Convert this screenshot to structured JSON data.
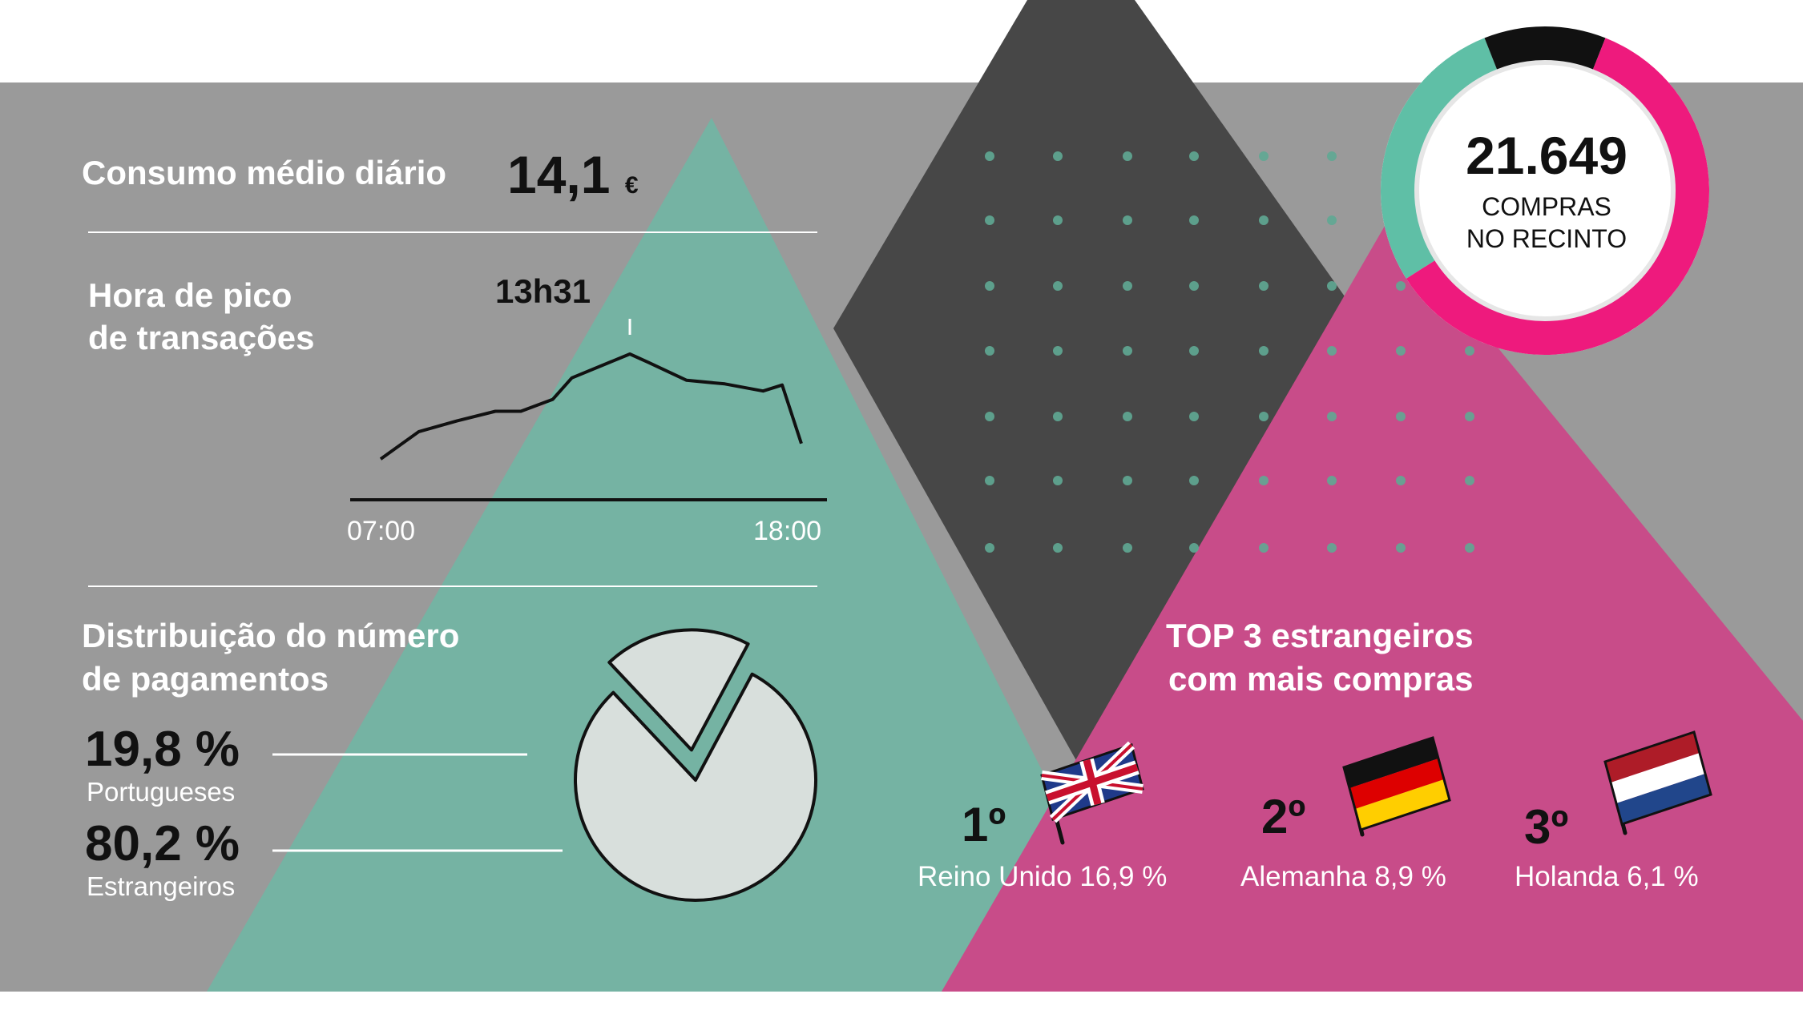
{
  "colors": {
    "gray_band": "#9a9a9a",
    "dark_diamond": "#474747",
    "green_triangle": "#75b3a3",
    "pink_triangle": "#c84c89",
    "pink_ring": "#ee1a7d",
    "green_ring": "#5fbfa6",
    "dots": "#5fa893",
    "pie_fill": "#d8dfdc",
    "line": "#111111"
  },
  "consumo": {
    "label": "Consumo médio diário",
    "value": "14,1",
    "unit": "€"
  },
  "pico": {
    "label_line1": "Hora de pico",
    "label_line2": "de transações",
    "peak_label": "13h31"
  },
  "distribuicao": {
    "title_line1": "Distribuição do número",
    "title_line2": "de pagamentos",
    "items": [
      {
        "value": "19,8 %",
        "label": "Portugueses"
      },
      {
        "value": "80,2 %",
        "label": "Estrangeiros"
      }
    ]
  },
  "compras": {
    "value": "21.649",
    "line1": "COMPRAS",
    "line2": "NO RECINTO",
    "ring_segments": [
      {
        "color": "#5fbfa6",
        "share": 0.28
      },
      {
        "color": "#111111",
        "share": 0.12
      },
      {
        "color": "#ee1a7d",
        "share": 0.6
      }
    ]
  },
  "top3": {
    "title_line1": "TOP 3 estrangeiros",
    "title_line2": "com mais compras",
    "items": [
      {
        "rank": "1º",
        "name": "Reino Unido 16,9 %",
        "flag": "uk-flag-icon"
      },
      {
        "rank": "2º",
        "name": "Alemanha 8,9 %",
        "flag": "germany-flag-icon"
      },
      {
        "rank": "3º",
        "name": "Holanda 6,1 %",
        "flag": "netherlands-flag-icon"
      }
    ]
  },
  "chart_data": [
    {
      "type": "line",
      "x_tick_labels": [
        "07:00",
        "18:00"
      ],
      "x": [
        "07:00",
        "08:00",
        "09:00",
        "10:00",
        "10:40",
        "11:30",
        "12:00",
        "13:31",
        "14:00",
        "15:00",
        "16:00",
        "17:00",
        "17:30",
        "18:00"
      ],
      "values": [
        0.12,
        0.35,
        0.44,
        0.52,
        0.52,
        0.62,
        0.8,
        1.0,
        0.93,
        0.78,
        0.75,
        0.69,
        0.74,
        0.25
      ],
      "annotation": {
        "x": "13:31",
        "label": "13h31"
      },
      "grid": false,
      "legend": "none"
    },
    {
      "type": "pie",
      "labels": [
        "Portugueses",
        "Estrangeiros"
      ],
      "values": [
        19.8,
        80.2
      ],
      "exploded": [
        "Portugueses"
      ],
      "legend": "left"
    }
  ]
}
